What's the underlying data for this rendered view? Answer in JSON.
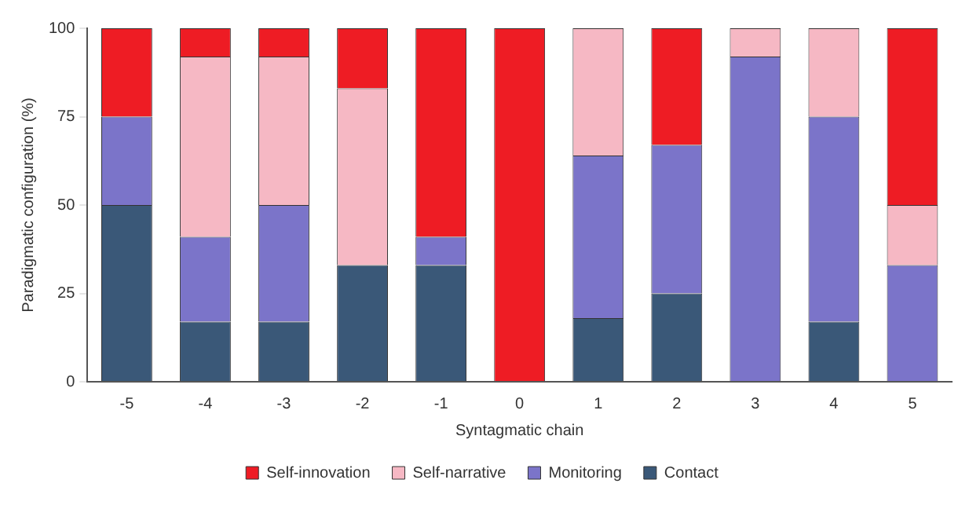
{
  "chart_data": {
    "type": "bar",
    "stacked": true,
    "xlabel": "Syntagmatic chain",
    "ylabel": "Paradigmatic configuration (%)",
    "categories": [
      "-5",
      "-4",
      "-3",
      "-2",
      "-1",
      "0",
      "1",
      "2",
      "3",
      "4",
      "5"
    ],
    "ylim": [
      0,
      100
    ],
    "yticks": [
      0,
      25,
      50,
      75,
      100
    ],
    "grid": false,
    "legend": "bottom",
    "series": [
      {
        "name": "Contact",
        "color": "#3a5878",
        "values": [
          50,
          17,
          17,
          33,
          33,
          0,
          18,
          25,
          0,
          17,
          0
        ]
      },
      {
        "name": "Monitoring",
        "color": "#7b74c9",
        "values": [
          25,
          24,
          33,
          0,
          8,
          0,
          46,
          42,
          92,
          58,
          33
        ]
      },
      {
        "name": "Self-narrative",
        "color": "#f6b8c4",
        "values": [
          0,
          51,
          42,
          50,
          0,
          0,
          36,
          0,
          8,
          25,
          17
        ]
      },
      {
        "name": "Self-innovation",
        "color": "#ee1c24",
        "values": [
          25,
          8,
          8,
          17,
          59,
          100,
          0,
          33,
          0,
          0,
          50
        ]
      }
    ]
  }
}
